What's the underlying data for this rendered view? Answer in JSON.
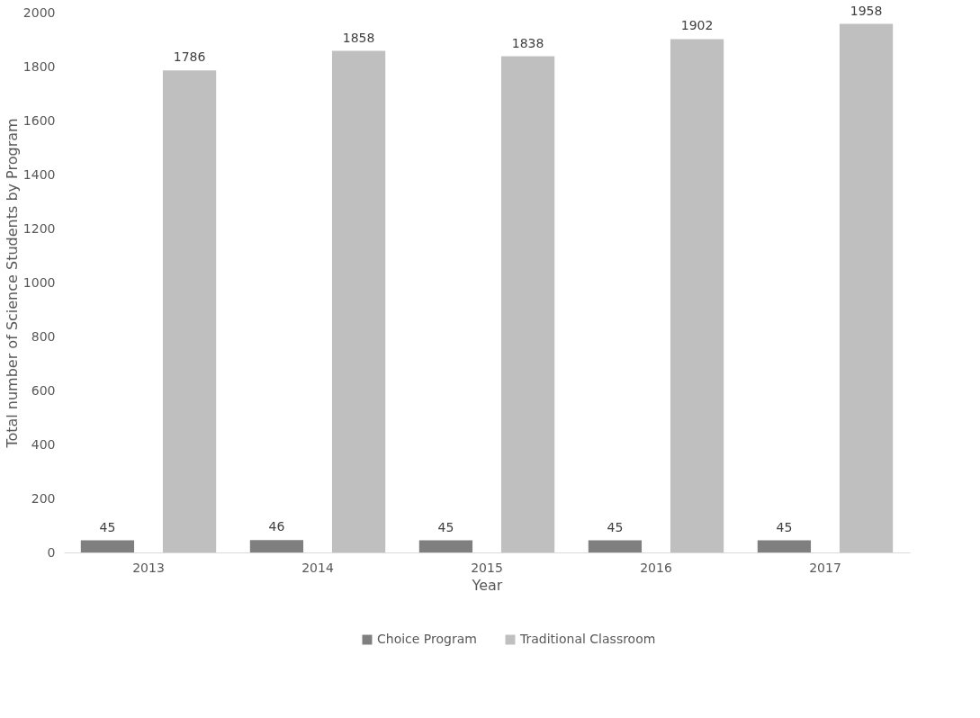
{
  "chart_data": {
    "type": "bar",
    "xlabel": "Year",
    "ylabel": "Total number of Science Students by Program",
    "categories": [
      "2013",
      "2014",
      "2015",
      "2016",
      "2017"
    ],
    "series": [
      {
        "name": "Choice Program",
        "color": "#7f7f7f",
        "values": [
          45,
          46,
          45,
          45,
          45
        ]
      },
      {
        "name": "Traditional Classroom",
        "color": "#bfbfbf",
        "values": [
          1786,
          1858,
          1838,
          1902,
          1958
        ]
      }
    ],
    "ylim": [
      0,
      2000
    ],
    "yticks": [
      0,
      200,
      400,
      600,
      800,
      1000,
      1200,
      1400,
      1600,
      1800,
      2000
    ],
    "data_labels": true,
    "grid": false,
    "legend": "bottom"
  }
}
